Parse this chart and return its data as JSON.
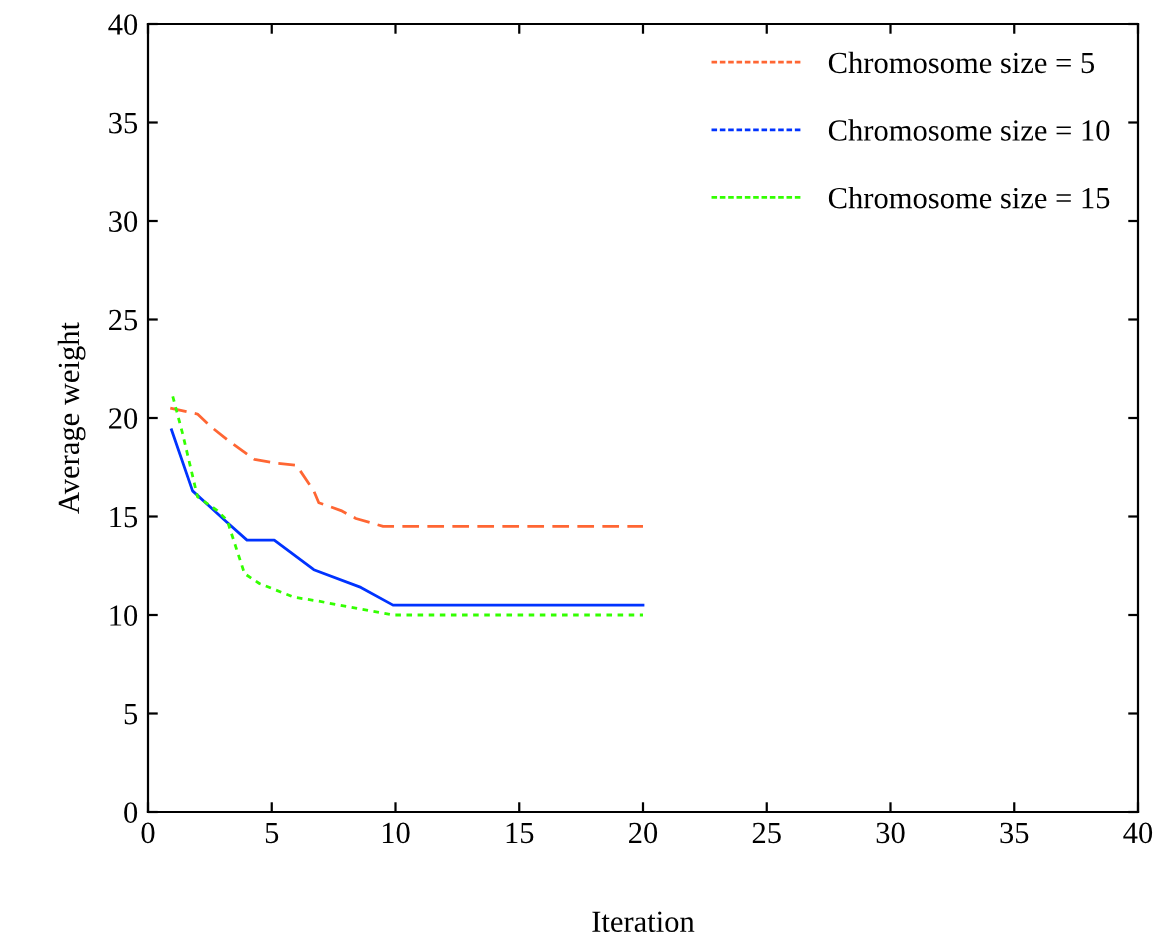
{
  "chart_data": {
    "type": "line",
    "xlabel": "Iteration",
    "ylabel": "Average weight",
    "xlim": [
      0,
      40
    ],
    "xticks": [
      0,
      5,
      10,
      15,
      20,
      25,
      30,
      35,
      40
    ],
    "ylim": [
      0,
      40
    ],
    "yticks": [
      0,
      5,
      10,
      15,
      20,
      25,
      30,
      35,
      40
    ],
    "grid": false,
    "legend": "top right",
    "marker": "none",
    "series": [
      {
        "name": "Chromosome size = 5",
        "color": "#ff6633",
        "line_style": "dashed",
        "x": [
          0.9,
          2,
          2.5,
          3.2,
          4.3,
          5.2,
          6,
          6.7,
          6.9,
          7.8,
          8.4,
          9.5,
          20
        ],
        "values": [
          20.5,
          20.2,
          19.6,
          18.9,
          17.9,
          17.7,
          17.6,
          16.3,
          15.7,
          15.3,
          14.9,
          14.5,
          14.5
        ]
      },
      {
        "name": "Chromosome size = 10",
        "color": "#0033ff",
        "line_style": "solid",
        "x": [
          0.95,
          1.8,
          3.2,
          4,
          5.1,
          6.7,
          8.6,
          9.9,
          20
        ],
        "values": [
          19.4,
          16.3,
          14.7,
          13.8,
          13.8,
          12.3,
          11.4,
          10.5,
          10.5
        ]
      },
      {
        "name": "Chromosome size = 15",
        "color": "#33ff00",
        "line_style": "dotted",
        "x": [
          1,
          1.4,
          2,
          2.8,
          3.2,
          3.9,
          4.5,
          5.9,
          6.9,
          8.6,
          9.9,
          20
        ],
        "values": [
          21.1,
          19.2,
          16,
          15.3,
          14.8,
          12.1,
          11.6,
          10.9,
          10.7,
          10.3,
          10,
          10
        ]
      }
    ]
  }
}
